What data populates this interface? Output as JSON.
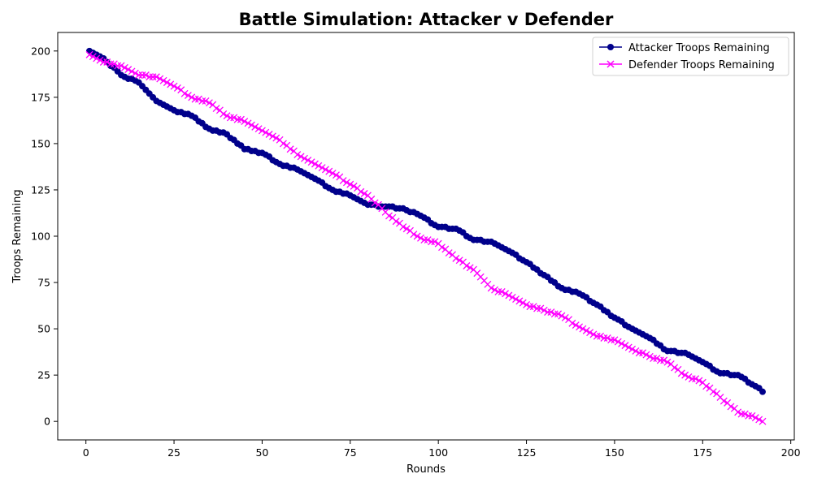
{
  "chart_data": {
    "type": "line",
    "title": "Battle Simulation: Attacker v Defender",
    "xlabel": "Rounds",
    "ylabel": "Troops Remaining",
    "xlim": [
      -8,
      201
    ],
    "ylim": [
      -10,
      210
    ],
    "xticks": [
      0,
      25,
      50,
      75,
      100,
      125,
      150,
      175,
      200
    ],
    "yticks": [
      0,
      25,
      50,
      75,
      100,
      125,
      150,
      175,
      200
    ],
    "grid": false,
    "legend": "top-right",
    "series": [
      {
        "name": "Attacker Troops Remaining",
        "color": "#00008b",
        "marker": "circle",
        "x": [
          1,
          5,
          10,
          15,
          20,
          25,
          30,
          35,
          40,
          45,
          50,
          55,
          60,
          65,
          70,
          75,
          80,
          85,
          90,
          95,
          100,
          105,
          110,
          115,
          120,
          125,
          130,
          135,
          140,
          145,
          150,
          155,
          160,
          165,
          170,
          175,
          180,
          185,
          190,
          192
        ],
        "y": [
          200,
          196,
          187,
          183,
          173,
          168,
          165,
          158,
          155,
          147,
          145,
          139,
          136,
          131,
          125,
          122,
          117,
          116,
          115,
          111,
          105,
          104,
          98,
          97,
          92,
          86,
          79,
          72,
          69,
          63,
          56,
          50,
          45,
          38,
          37,
          32,
          26,
          25,
          19,
          16
        ]
      },
      {
        "name": "Defender Troops Remaining",
        "color": "#ff00ff",
        "marker": "x",
        "x": [
          1,
          5,
          10,
          15,
          20,
          25,
          30,
          35,
          40,
          45,
          50,
          55,
          60,
          65,
          70,
          75,
          80,
          85,
          90,
          95,
          100,
          105,
          110,
          115,
          120,
          125,
          130,
          135,
          140,
          145,
          150,
          155,
          160,
          165,
          170,
          175,
          180,
          185,
          190,
          192
        ],
        "y": [
          198,
          194,
          192,
          187,
          186,
          181,
          175,
          172,
          165,
          162,
          157,
          152,
          144,
          139,
          134,
          128,
          122,
          113,
          105,
          99,
          96,
          88,
          82,
          72,
          68,
          63,
          60,
          57,
          51,
          46,
          44,
          39,
          35,
          32,
          25,
          21,
          13,
          5,
          2,
          0
        ]
      }
    ]
  }
}
